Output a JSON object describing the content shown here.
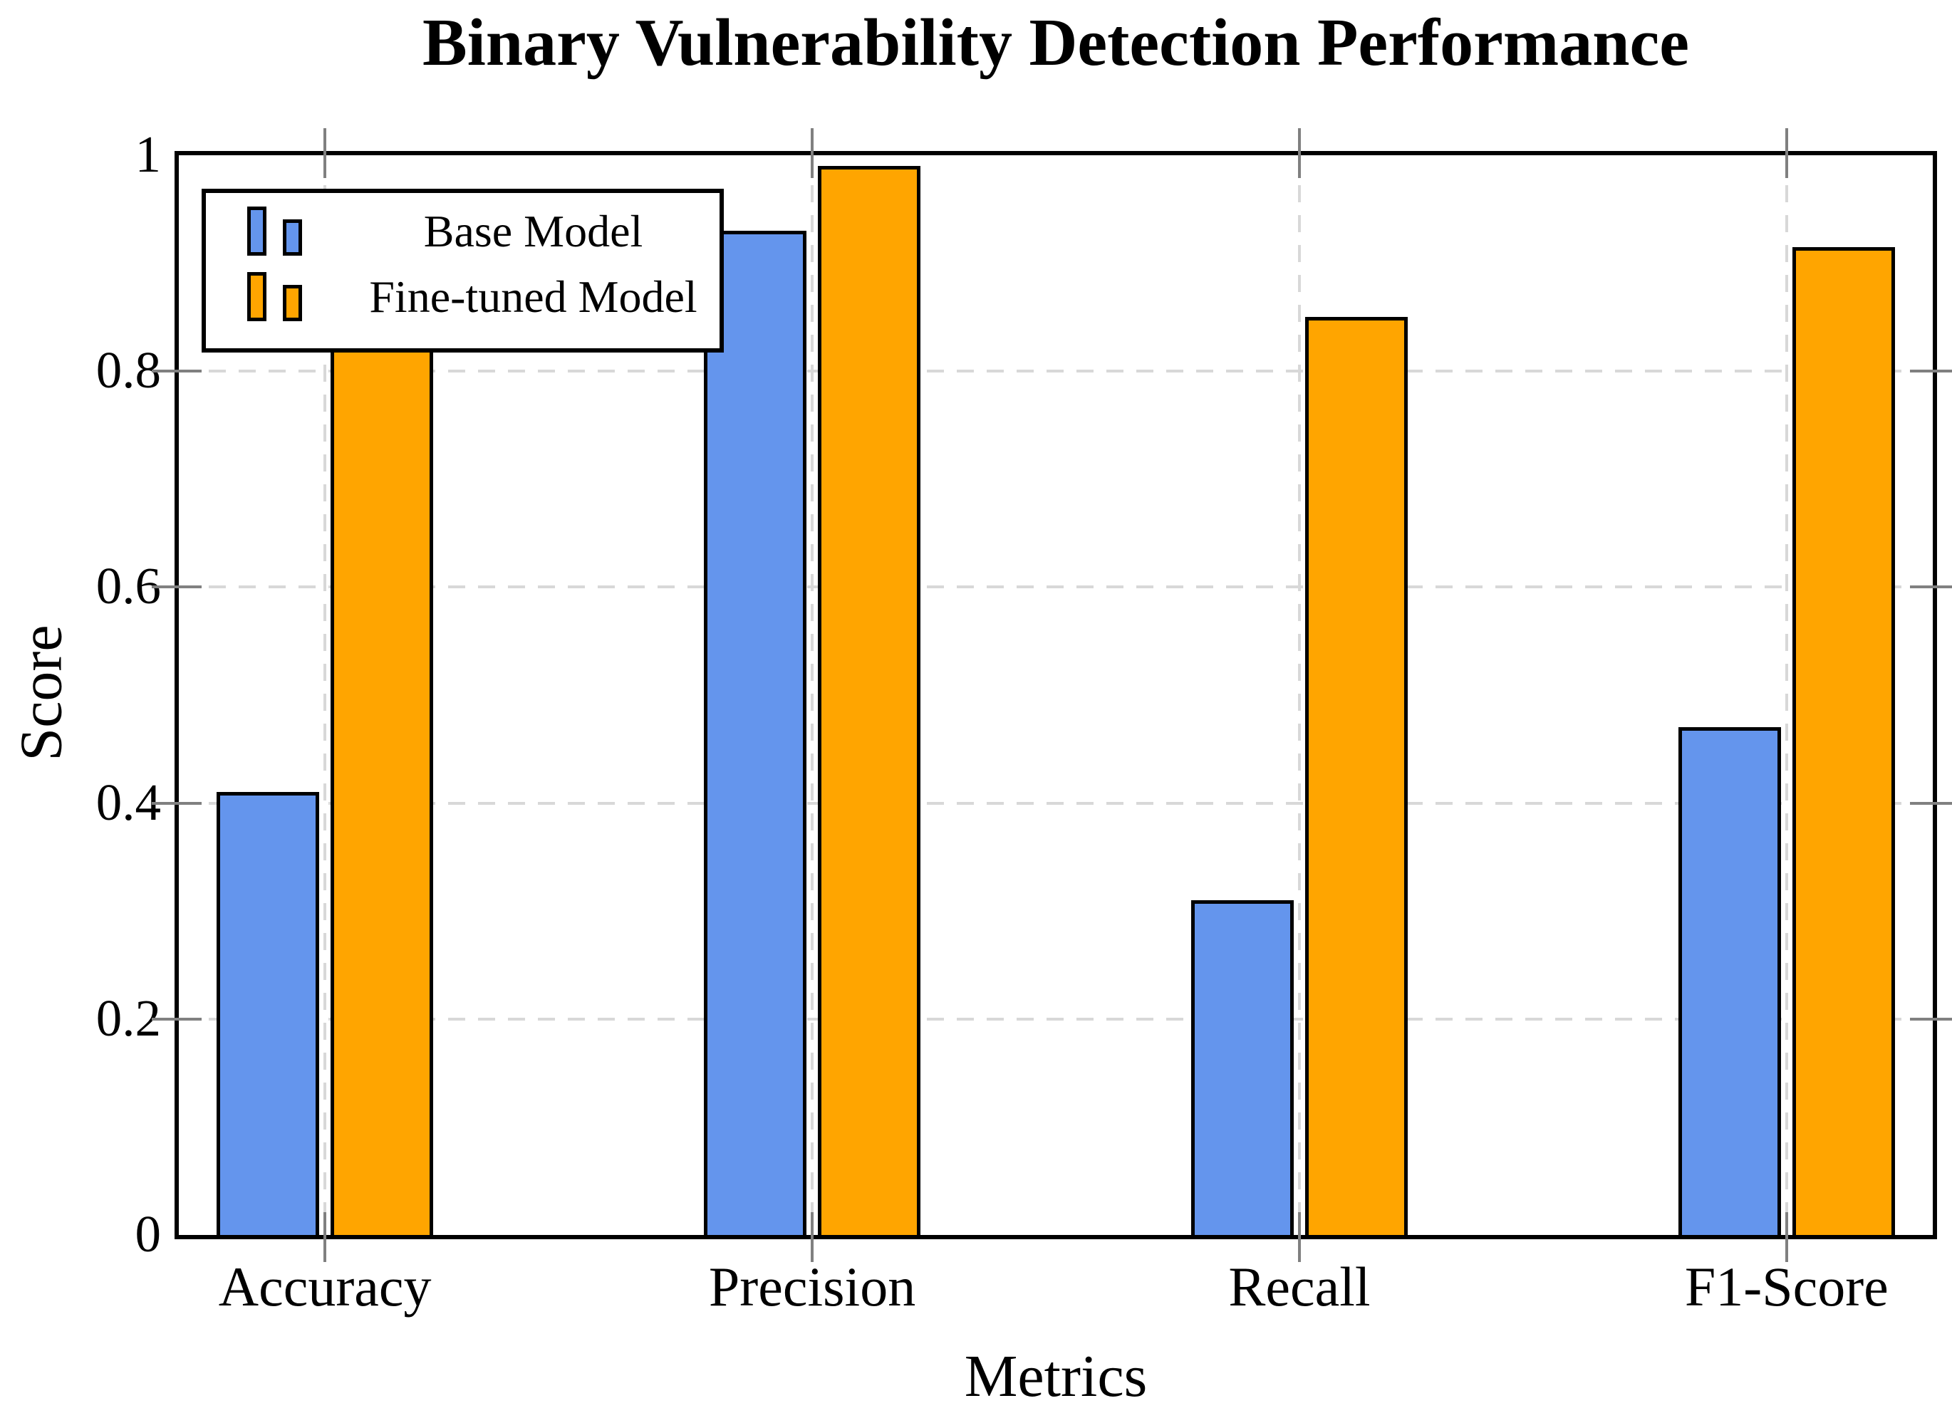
{
  "title": "Binary Vulnerability Detection Performance",
  "axes": {
    "y_label": "Score",
    "x_label": "Metrics",
    "y_tick_values": [
      0,
      0.2,
      0.4,
      0.6,
      0.8,
      1
    ],
    "y_tick_labels": [
      "0",
      "0.2",
      "0.4",
      "0.6",
      "0.8",
      "1"
    ],
    "y_range": [
      0,
      1
    ]
  },
  "legend": {
    "entries": [
      "Base Model",
      "Fine-tuned Model"
    ],
    "position": "top-left"
  },
  "colors": {
    "base_model_fill": "#6495ED",
    "fine_tuned_fill": "#FFA500",
    "bar_border": "#000000",
    "gridline": "#D8D8D8",
    "tick": "#808080",
    "frame": "#000000",
    "background": "#FFFFFF"
  },
  "chart_data": {
    "type": "bar",
    "title": "Binary Vulnerability Detection Performance",
    "xlabel": "Metrics",
    "ylabel": "Score",
    "categories": [
      "Accuracy",
      "Precision",
      "Recall",
      "F1-Score"
    ],
    "series": [
      {
        "name": "Base Model",
        "color": "#6495ED",
        "values": [
          0.41,
          0.93,
          0.31,
          0.47
        ]
      },
      {
        "name": "Fine-tuned Model",
        "color": "#FFA500",
        "values": [
          0.87,
          0.99,
          0.85,
          0.915
        ]
      }
    ],
    "ylim": [
      0,
      1
    ],
    "grid": "dashed horizontal at 0.2,0.4,0.6,0.8 and vertical at each category center",
    "legend_position": "top-left inside plot (overlaps top of Accuracy fine-tuned bar)",
    "bar_style": "black outlined, grouped pairs"
  }
}
